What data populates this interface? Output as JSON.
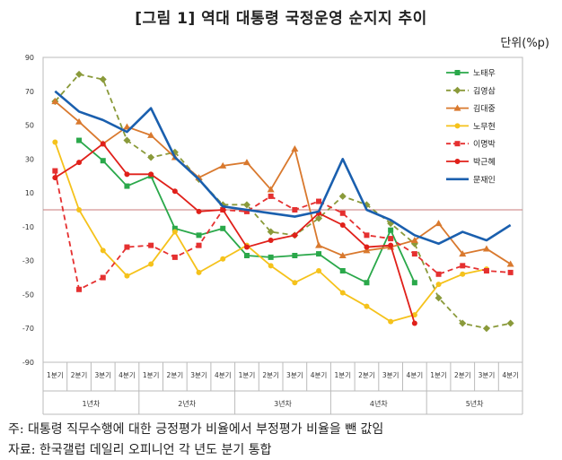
{
  "title": "[그림 1] 역대 대통령 국정운영 순지지 추이",
  "unit": "단위(%p)",
  "notes": {
    "note1": "주: 대통령 직무수행에 대한 긍정평가 비율에서 부정평가 비율을 뺀 값임",
    "note2": "자료: 한국갤럽 데일리 오피니언 각 년도 분기 통합"
  },
  "chart_data": {
    "type": "line",
    "categories": [
      "1분기",
      "2분기",
      "3분기",
      "4분기",
      "1분기",
      "2분기",
      "3분기",
      "4분기",
      "1분기",
      "2분기",
      "3분기",
      "4분기",
      "1분기",
      "2분기",
      "3분기",
      "4분기",
      "1분기",
      "2분기",
      "3분기",
      "4분기"
    ],
    "year_groups": [
      "1년차",
      "2년차",
      "3년차",
      "4년차",
      "5년차"
    ],
    "y_ticks": [
      90,
      70,
      50,
      30,
      10,
      -10,
      -30,
      -50,
      -70,
      -90
    ],
    "ylim": [
      -90,
      90
    ],
    "reference_line": 0,
    "series": [
      {
        "name": "노태우",
        "color": "#2aa84a",
        "style": "solid",
        "marker": "square",
        "values": [
          null,
          41,
          29,
          14,
          20,
          -11,
          -15,
          -11,
          -27,
          -28,
          -27,
          -26,
          -36,
          -43,
          -12,
          -43,
          null,
          null,
          null,
          null
        ]
      },
      {
        "name": "김영삼",
        "color": "#8a9a3a",
        "style": "dashed",
        "marker": "diamond",
        "values": [
          64,
          80,
          77,
          41,
          31,
          34,
          18,
          3,
          3,
          -13,
          -15,
          -5,
          8,
          3,
          -8,
          -20,
          -52,
          -67,
          -70,
          -67
        ]
      },
      {
        "name": "김대중",
        "color": "#d9792e",
        "style": "solid",
        "marker": "triangle",
        "values": [
          64,
          52,
          39,
          49,
          44,
          31,
          19,
          26,
          28,
          12,
          36,
          -21,
          -27,
          -24,
          -22,
          -18,
          -8,
          -26,
          -23,
          -32
        ]
      },
      {
        "name": "노무현",
        "color": "#f5c21b",
        "style": "solid",
        "marker": "circle",
        "values": [
          40,
          0,
          -24,
          -39,
          -32,
          -13,
          -37,
          -29,
          -21,
          -33,
          -43,
          -36,
          -49,
          -57,
          -66,
          -62,
          -44,
          -38,
          -35,
          null
        ]
      },
      {
        "name": "이명박",
        "color": "#e53030",
        "style": "dashed",
        "marker": "square",
        "values": [
          23,
          -47,
          -40,
          -22,
          -21,
          -28,
          -21,
          0,
          -1,
          8,
          0,
          5,
          -2,
          -15,
          -17,
          -26,
          -38,
          -33,
          -36,
          -37
        ]
      },
      {
        "name": "박근혜",
        "color": "#e0201a",
        "style": "solid",
        "marker": "circle",
        "values": [
          19,
          28,
          39,
          21,
          21,
          11,
          -1,
          0,
          -22,
          -18,
          -15,
          -2,
          -9,
          -22,
          -21,
          -67,
          null,
          null,
          null,
          null
        ]
      },
      {
        "name": "문재인",
        "color": "#1a5fae",
        "style": "solid",
        "marker": "none",
        "values": [
          70,
          58,
          53,
          46,
          60,
          31,
          18,
          2,
          0,
          -2,
          -4,
          -1,
          30,
          0,
          -6,
          -15,
          -20,
          -13,
          -18,
          -9
        ]
      }
    ]
  }
}
